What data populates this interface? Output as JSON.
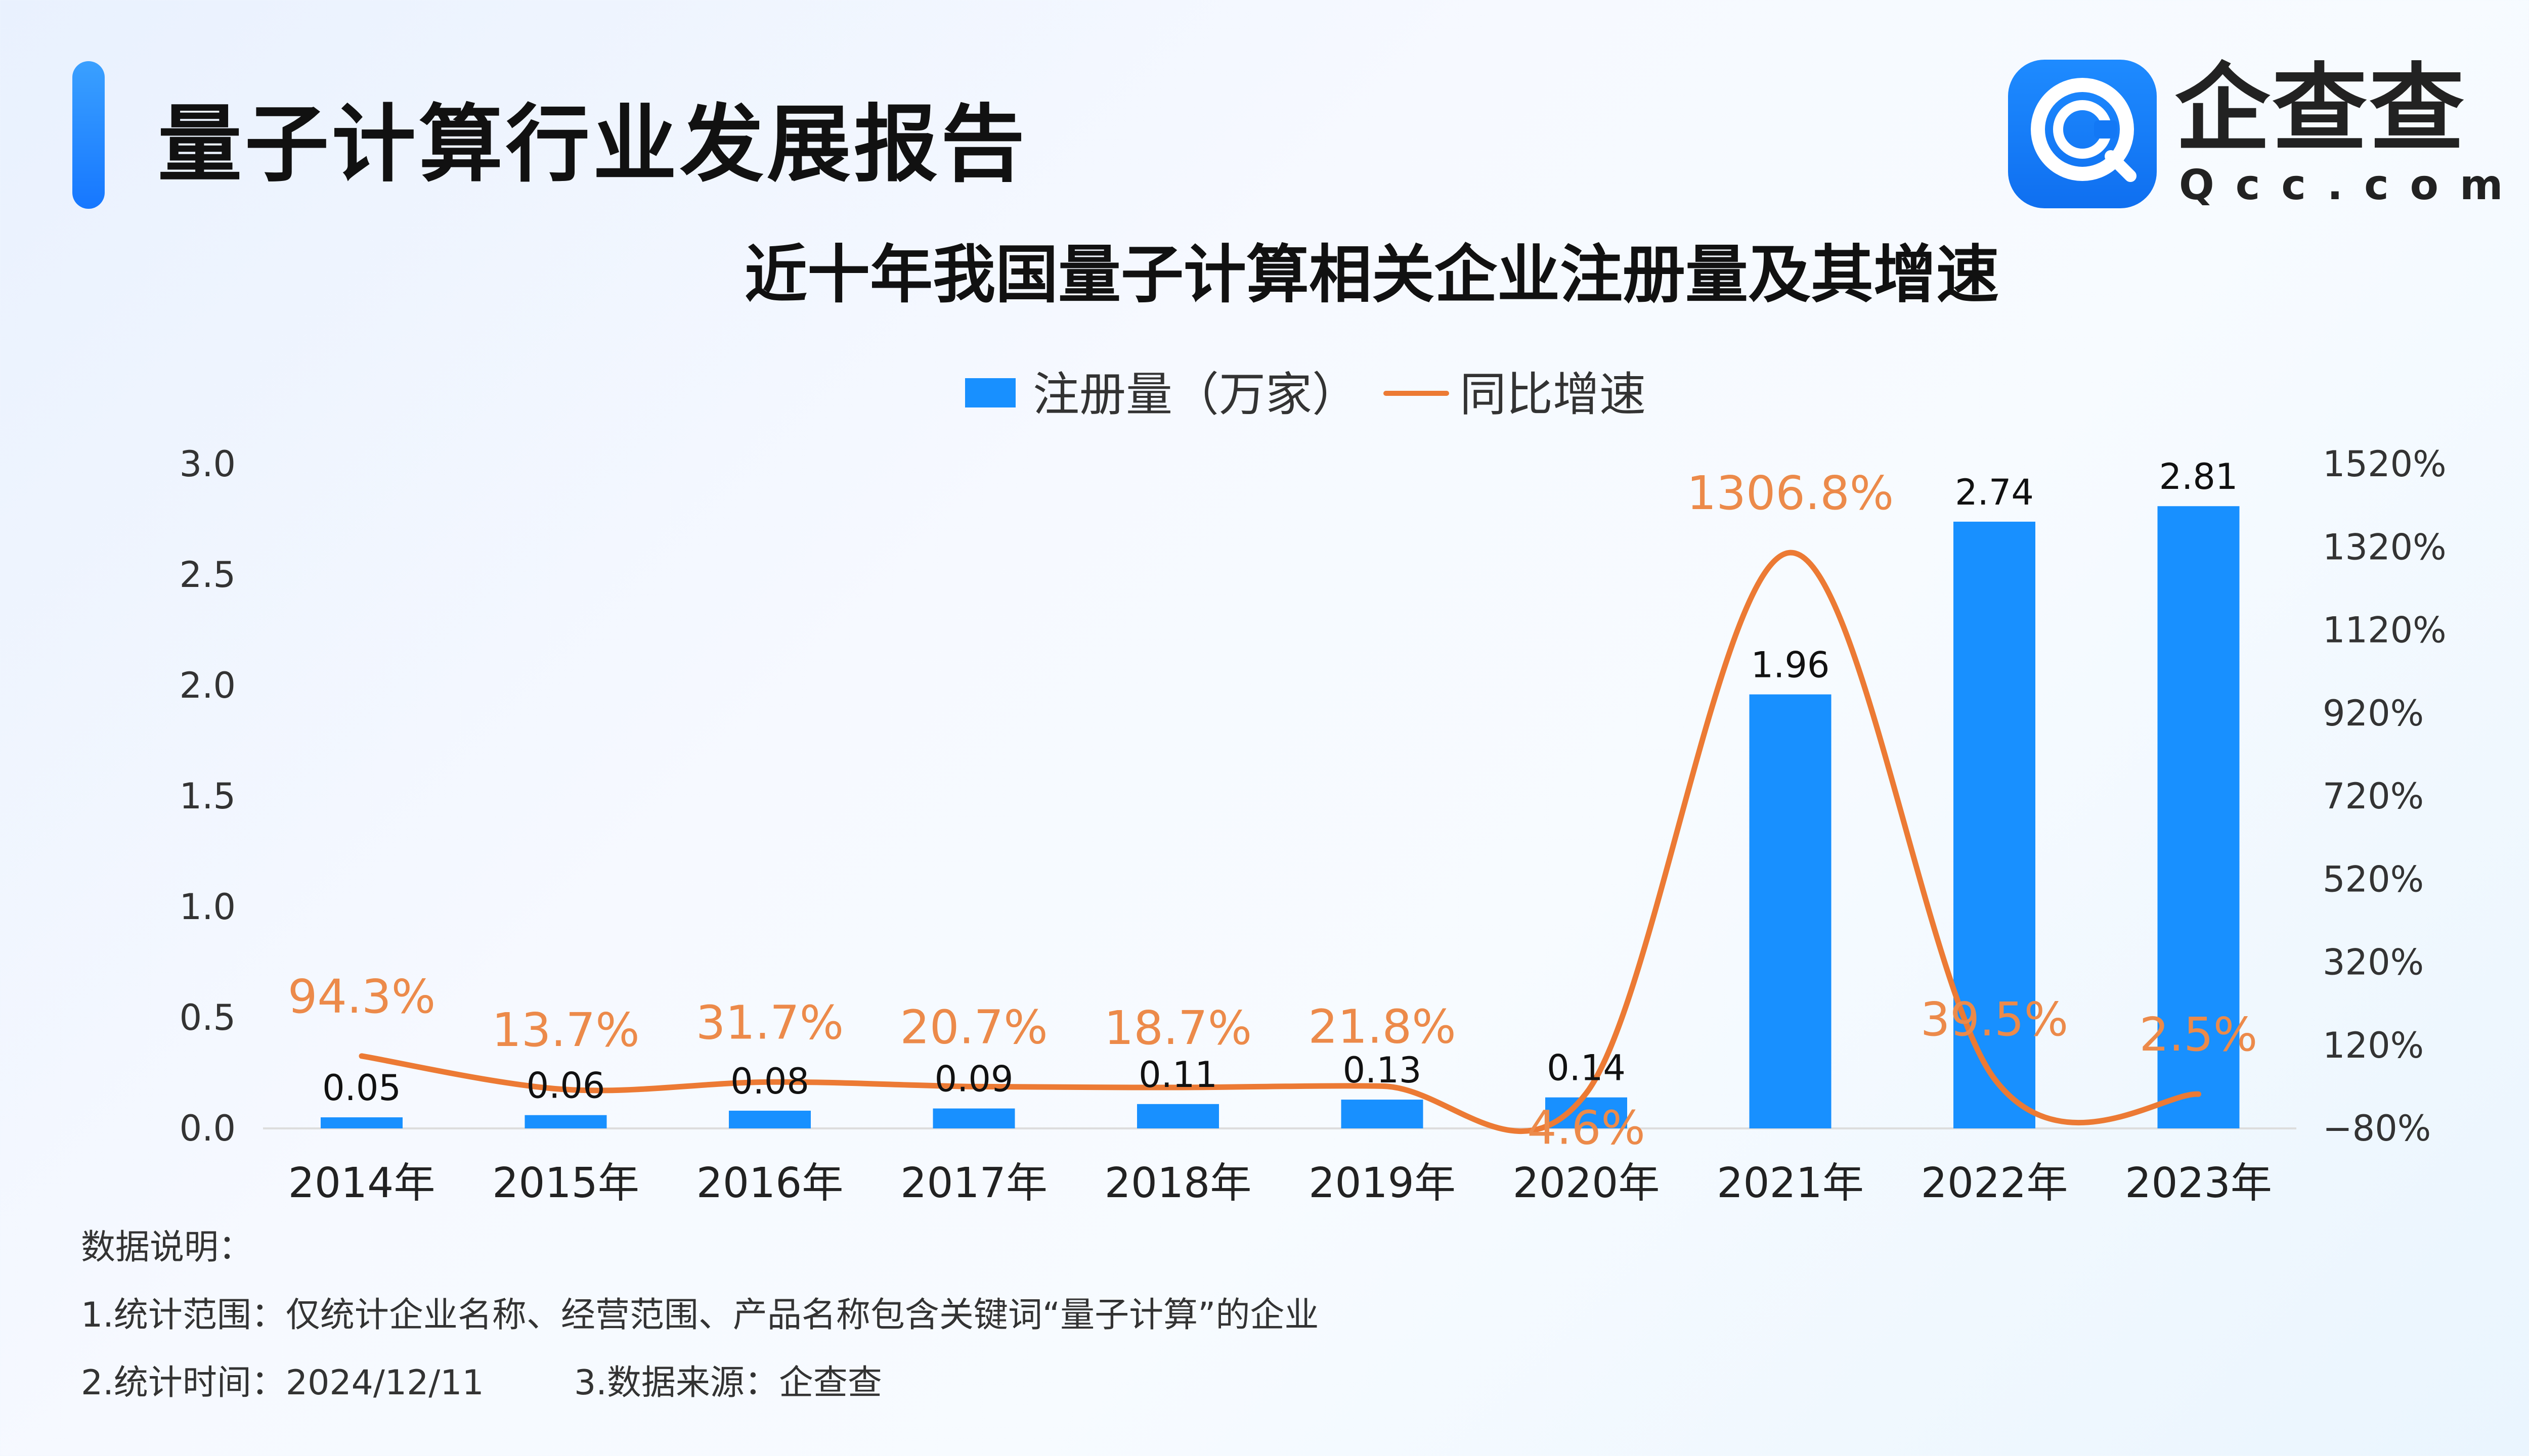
{
  "header": {
    "title": "量子计算行业发展报告"
  },
  "logo": {
    "name": "企查查",
    "domain": "Qcc.com",
    "icon": "qcc-logo-icon"
  },
  "notes": {
    "title": "数据说明：",
    "item1": "1.统计范围：仅统计企业名称、经营范围、产品名称包含关键词“量子计算”的企业",
    "item2": "2.统计时间：2024/12/11",
    "item3": "3.数据来源：企查查"
  },
  "chart_data": {
    "type": "bar",
    "title": "近十年我国量子计算相关企业注册量及其增速",
    "categories": [
      "2014年",
      "2015年",
      "2016年",
      "2017年",
      "2018年",
      "2019年",
      "2020年",
      "2021年",
      "2022年",
      "2023年"
    ],
    "series": [
      {
        "name": "注册量（万家）",
        "type": "bar",
        "axis": "left",
        "values": [
          0.05,
          0.06,
          0.08,
          0.09,
          0.11,
          0.13,
          0.14,
          1.96,
          2.74,
          2.81
        ],
        "labels": [
          "0.05",
          "0.06",
          "0.08",
          "0.09",
          "0.11",
          "0.13",
          "0.14",
          "1.96",
          "2.74",
          "2.81"
        ],
        "color": "#1890ff"
      },
      {
        "name": "同比增速",
        "type": "line",
        "axis": "right",
        "values": [
          94.3,
          13.7,
          31.7,
          20.7,
          18.7,
          21.8,
          4.6,
          1306.8,
          39.5,
          2.5
        ],
        "labels": [
          "94.3%",
          "13.7%",
          "31.7%",
          "20.7%",
          "18.7%",
          "21.8%",
          "4.6%",
          "1306.8%",
          "39.5%",
          "2.5%"
        ],
        "color": "#ec7a34"
      }
    ],
    "legend_position": "top-center",
    "y_left": {
      "min": 0,
      "max": 3.0,
      "ticks": [
        0.0,
        0.5,
        1.0,
        1.5,
        2.0,
        2.5,
        3.0
      ],
      "tick_labels": [
        "0.0",
        "0.5",
        "1.0",
        "1.5",
        "2.0",
        "2.5",
        "3.0"
      ]
    },
    "y_right": {
      "min": -80,
      "max": 1520,
      "ticks": [
        -80,
        120,
        320,
        520,
        720,
        920,
        1120,
        1320,
        1520
      ],
      "tick_labels": [
        "−80%",
        "120%",
        "320%",
        "520%",
        "720%",
        "920%",
        "1120%",
        "1320%",
        "1520%"
      ]
    },
    "grid": false
  }
}
